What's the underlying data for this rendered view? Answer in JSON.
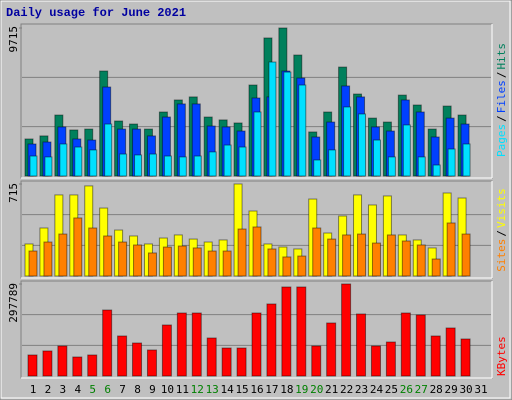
{
  "chart_data": {
    "type": "bar",
    "title": "Daily usage for June 2021",
    "categories": [
      "1",
      "2",
      "3",
      "4",
      "5",
      "6",
      "7",
      "8",
      "9",
      "10",
      "11",
      "12",
      "13",
      "14",
      "15",
      "16",
      "17",
      "18",
      "19",
      "20",
      "21",
      "22",
      "23",
      "24",
      "25",
      "26",
      "27",
      "28",
      "29",
      "30",
      "31"
    ],
    "weekend": [
      4,
      5,
      11,
      12,
      18,
      19,
      25,
      26
    ],
    "label_color": "#000000",
    "weekend_color": "#008000",
    "separator": "/",
    "grid_divisions": 3,
    "panels": [
      {
        "ylim": [
          0,
          9715
        ],
        "yticks": [
          9715
        ],
        "series": [
          {
            "name": "Hits",
            "color": "#00805c",
            "values": [
              2430,
              2630,
              4000,
              3020,
              3080,
              6890,
              3610,
              3410,
              3080,
              4200,
              4990,
              5190,
              3870,
              3680,
              3480,
              5970,
              9060,
              9715,
              7940,
              2890,
              4200,
              7150,
              5380,
              3800,
              3540,
              5310,
              4660,
              3080,
              4590,
              4000,
              null
            ]
          },
          {
            "name": "Files",
            "color": "#0040ff",
            "values": [
              2100,
              2230,
              3220,
              2430,
              2360,
              5840,
              3080,
              3080,
              2630,
              3870,
              4730,
              4730,
              3280,
              3220,
              2950,
              5120,
              5190,
              6890,
              6430,
              2560,
              3540,
              5910,
              5190,
              3220,
              2950,
              4990,
              4200,
              2560,
              3800,
              3410,
              null
            ]
          },
          {
            "name": "Pages",
            "color": "#00e0ff",
            "values": [
              1310,
              1250,
              2100,
              1900,
              1710,
              3410,
              1440,
              1380,
              1440,
              1310,
              1250,
              1310,
              1580,
              2030,
              1900,
              4200,
              7480,
              6820,
              5970,
              1050,
              1710,
              4530,
              4070,
              2360,
              1250,
              3350,
              1250,
              720,
              1770,
              2100,
              null
            ]
          }
        ]
      },
      {
        "ylim": [
          0,
          715
        ],
        "yticks": [
          715
        ],
        "series": [
          {
            "name": "Visits",
            "color": "#ffff00",
            "values": [
              249,
              373,
              630,
              630,
              700,
              528,
              357,
              311,
              249,
              295,
              319,
              287,
              264,
              280,
              715,
              505,
              249,
              225,
              210,
              598,
              334,
              466,
              630,
              552,
              622,
              319,
              280,
              218,
              645,
              606,
              null
            ]
          },
          {
            "name": "Sites",
            "color": "#ff8000",
            "values": [
              194,
              264,
              326,
              451,
              373,
              311,
              264,
              241,
              179,
              225,
              233,
              218,
              194,
              194,
              365,
              381,
              210,
              148,
              155,
              373,
              287,
              319,
              326,
              256,
              319,
              272,
              241,
              132,
              412,
              326,
              null
            ]
          }
        ]
      },
      {
        "ylim": [
          0,
          297789
        ],
        "yticks": [
          297789
        ],
        "series": [
          {
            "name": "KBytes",
            "color": "#ff0000",
            "values": [
              68000,
              81000,
              97000,
              61500,
              68000,
              213600,
              129500,
              106800,
              84200,
              165100,
              203900,
              203900,
              123000,
              90600,
              90600,
              203900,
              233100,
              288100,
              288100,
              97100,
              171600,
              297789,
              200700,
              97100,
              110000,
              203900,
              197500,
              129500,
              155400,
              119800,
              null
            ]
          }
        ]
      }
    ]
  }
}
